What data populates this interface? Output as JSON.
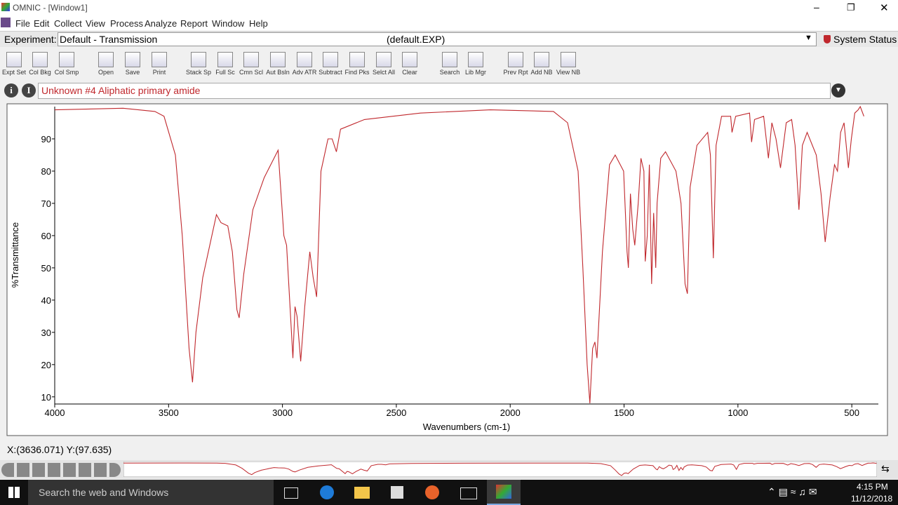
{
  "window": {
    "title": "OMNIC - [Window1]"
  },
  "menu": [
    "File",
    "Edit",
    "Collect",
    "View",
    "Process",
    "Analyze",
    "Report",
    "Window",
    "Help"
  ],
  "experiment": {
    "label": "Experiment:",
    "name": "Default - Transmission",
    "file": "(default.EXP)",
    "status": "System Status"
  },
  "toolbar": [
    "Expt Set",
    "Col Bkg",
    "Col Smp",
    "Open",
    "Save",
    "Print",
    "Stack Sp",
    "Full Sc",
    "Cmn Scl",
    "Aut Bsln",
    "Adv ATR",
    "Subtract",
    "Find Pks",
    "Selct All",
    "Clear",
    "Search",
    "Lib Mgr",
    "Prev Rpt",
    "Add NB",
    "View NB"
  ],
  "spectrum_title": "Unknown #4 Aliphatic primary amide",
  "chart_data": {
    "type": "line",
    "x_label": "Wavenumbers (cm-1)",
    "y_label": "%Transmittance",
    "x": [
      4000,
      3700,
      3560,
      3520,
      3470,
      3440,
      3410,
      3395,
      3380,
      3350,
      3310,
      3290,
      3270,
      3240,
      3220,
      3200,
      3190,
      3170,
      3130,
      3080,
      3019,
      2994,
      2982,
      2954,
      2945,
      2936,
      2920,
      2902,
      2880,
      2865,
      2850,
      2831,
      2800,
      2782,
      2763,
      2745,
      2640,
      2394,
      2087,
      1810,
      1748,
      1702,
      1681,
      1662,
      1650,
      1638,
      1628,
      1619,
      1595,
      1564,
      1539,
      1502,
      1487,
      1481,
      1472,
      1462,
      1453,
      1438,
      1426,
      1413,
      1407,
      1398,
      1389,
      1379,
      1370,
      1361,
      1355,
      1339,
      1318,
      1272,
      1250,
      1232,
      1222,
      1210,
      1180,
      1133,
      1121,
      1108,
      1096,
      1072,
      1032,
      1026,
      1010,
      949,
      940,
      927,
      887,
      866,
      851,
      833,
      813,
      788,
      764,
      749,
      732,
      717,
      696,
      656,
      635,
      617,
      595,
      576,
      563,
      549,
      534,
      515,
      502,
      487,
      472,
      463,
      447
    ],
    "series": [
      {
        "color": "#c0282d",
        "values": [
          99,
          99.5,
          98.5,
          97,
          85,
          60,
          25,
          14.5,
          30,
          47,
          60,
          66.5,
          64,
          63,
          55,
          37,
          34.5,
          48,
          68,
          78,
          86.5,
          60,
          57,
          22,
          38,
          35,
          21,
          38,
          55,
          47,
          41,
          80,
          90,
          90,
          86,
          93,
          96,
          98,
          99,
          98.5,
          95,
          80,
          50,
          20,
          8,
          25,
          27,
          22,
          55,
          82,
          85,
          80,
          55,
          50,
          73,
          62,
          57,
          70,
          84,
          80,
          52,
          60,
          82,
          45,
          67,
          50,
          70,
          84,
          86,
          80,
          70,
          45,
          42,
          75,
          88,
          92,
          85,
          53,
          88,
          97,
          97,
          92,
          97,
          98,
          89,
          96,
          97,
          84,
          95,
          90,
          81,
          95,
          96,
          88,
          68,
          88,
          92,
          85,
          73,
          58,
          72,
          82,
          80,
          92,
          95,
          81,
          90,
          98,
          99,
          100,
          97
        ]
      }
    ],
    "xlim": [
      4000,
      445
    ],
    "ylim": [
      8,
      100
    ],
    "xticks": [
      4000,
      3500,
      3000,
      2500,
      2000,
      1500,
      1000,
      500
    ],
    "yticks": [
      10,
      20,
      30,
      40,
      50,
      60,
      70,
      80,
      90
    ]
  },
  "status": "X:(3636.071) Y:(97.635)",
  "taskbar": {
    "search": "Search the web and Windows",
    "time": "4:15 PM",
    "date": "11/12/2018"
  }
}
